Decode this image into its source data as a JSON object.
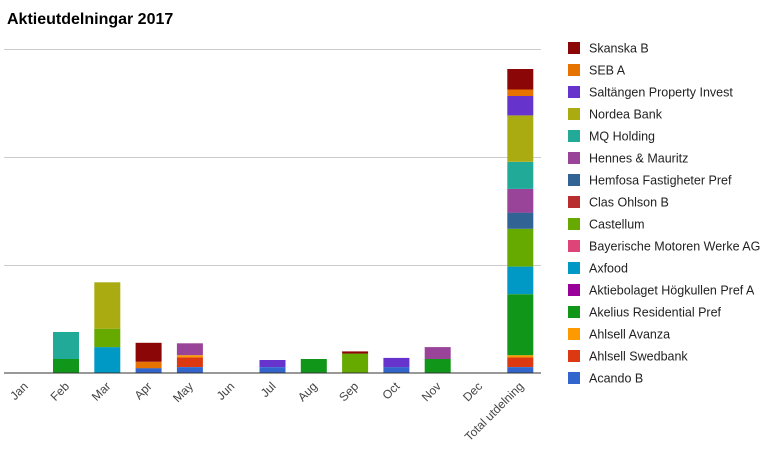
{
  "chart_data": {
    "type": "bar",
    "stacked": true,
    "title": "Aktieutdelningar 2017",
    "xlabel": "",
    "ylabel": "",
    "ylim": [
      0,
      3000
    ],
    "grid": true,
    "legend_position": "right",
    "categories": [
      "Jan",
      "Feb",
      "Mar",
      "Apr",
      "May",
      "Jun",
      "Jul",
      "Aug",
      "Sep",
      "Oct",
      "Nov",
      "Dec",
      "Total utdelning"
    ],
    "series": [
      {
        "name": "Acando B",
        "color": "#3366cc",
        "values": [
          0,
          0,
          0,
          45,
          55,
          0,
          55,
          0,
          0,
          55,
          0,
          0,
          55
        ]
      },
      {
        "name": "Ahlsell Swedbank",
        "color": "#dc3912",
        "values": [
          0,
          0,
          0,
          0,
          90,
          0,
          0,
          0,
          0,
          0,
          0,
          0,
          90
        ]
      },
      {
        "name": "Ahlsell Avanza",
        "color": "#ff9900",
        "values": [
          0,
          0,
          0,
          0,
          20,
          0,
          0,
          0,
          0,
          0,
          0,
          0,
          20
        ]
      },
      {
        "name": "Akelius Residential Pref",
        "color": "#109618",
        "values": [
          0,
          130,
          0,
          0,
          0,
          0,
          0,
          130,
          0,
          0,
          130,
          0,
          565
        ]
      },
      {
        "name": "Aktiebolaget Högkullen Pref A",
        "color": "#990099",
        "values": [
          0,
          0,
          0,
          0,
          0,
          0,
          0,
          0,
          0,
          0,
          0,
          0,
          0
        ]
      },
      {
        "name": "Axfood",
        "color": "#0099c6",
        "values": [
          0,
          0,
          240,
          0,
          0,
          0,
          0,
          0,
          0,
          0,
          0,
          0,
          255
        ]
      },
      {
        "name": "Bayerische Motoren Werke AG",
        "color": "#dd4477",
        "values": [
          0,
          0,
          0,
          0,
          0,
          0,
          0,
          0,
          0,
          0,
          0,
          0,
          0
        ]
      },
      {
        "name": "Castellum",
        "color": "#66aa00",
        "values": [
          0,
          0,
          170,
          0,
          0,
          0,
          0,
          0,
          180,
          0,
          0,
          0,
          350
        ]
      },
      {
        "name": "Clas Ohlson B",
        "color": "#b82e2e",
        "values": [
          0,
          0,
          0,
          0,
          0,
          0,
          0,
          0,
          0,
          0,
          0,
          0,
          0
        ]
      },
      {
        "name": "Hemfosa Fastigheter Pref",
        "color": "#316395",
        "values": [
          0,
          0,
          0,
          0,
          0,
          0,
          0,
          0,
          0,
          0,
          0,
          0,
          150
        ]
      },
      {
        "name": "Hennes & Mauritz",
        "color": "#994499",
        "values": [
          0,
          0,
          0,
          0,
          110,
          0,
          0,
          0,
          0,
          0,
          110,
          0,
          220
        ]
      },
      {
        "name": "MQ Holding",
        "color": "#22aa99",
        "values": [
          0,
          250,
          0,
          0,
          0,
          0,
          0,
          0,
          0,
          0,
          0,
          0,
          250
        ]
      },
      {
        "name": "Nordea Bank",
        "color": "#aaaa11",
        "values": [
          0,
          0,
          430,
          0,
          0,
          0,
          0,
          0,
          0,
          0,
          0,
          0,
          430
        ]
      },
      {
        "name": "Saltängen Property Invest",
        "color": "#6633cc",
        "values": [
          0,
          0,
          0,
          0,
          0,
          0,
          65,
          0,
          0,
          85,
          0,
          0,
          180
        ]
      },
      {
        "name": "SEB A",
        "color": "#e67300",
        "values": [
          0,
          0,
          0,
          60,
          0,
          0,
          0,
          0,
          0,
          0,
          0,
          0,
          60
        ]
      },
      {
        "name": "Skanska B",
        "color": "#8b0707",
        "values": [
          0,
          0,
          0,
          175,
          0,
          0,
          0,
          0,
          20,
          0,
          0,
          0,
          190
        ]
      }
    ]
  }
}
